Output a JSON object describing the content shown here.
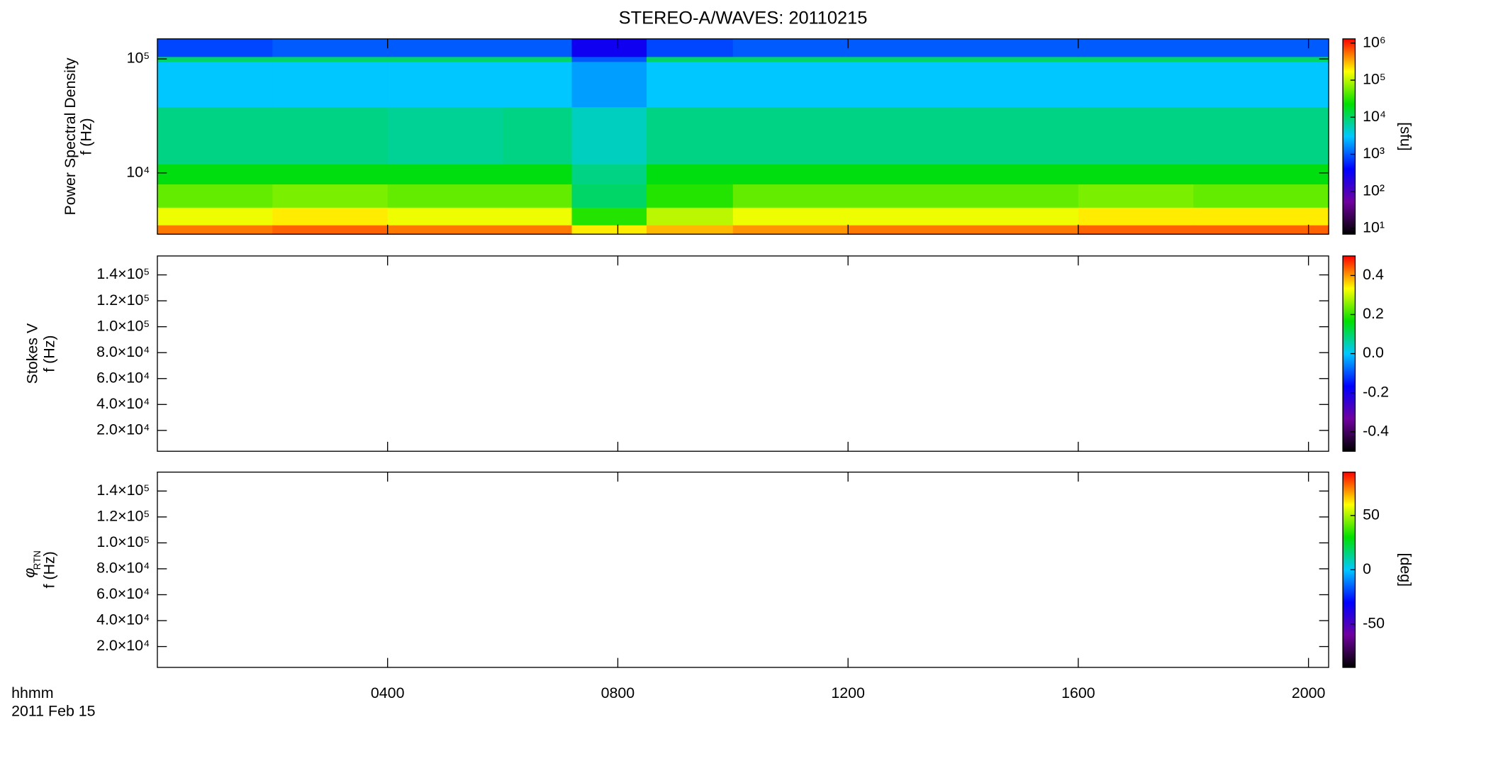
{
  "chart_data": [
    {
      "type": "spectrogram",
      "title": "STEREO-A/WAVES: 20110215",
      "ylabel": [
        "Power Spectral Density",
        "f (Hz)"
      ],
      "log": true,
      "ylim": [
        2900,
        150000
      ],
      "yticks": [
        {
          "value": 10000,
          "label": "10⁴"
        },
        {
          "value": 100000,
          "label": "10⁵"
        }
      ],
      "xlim": [
        0,
        20.35
      ],
      "xticks": [
        4,
        8,
        12,
        16,
        20
      ],
      "times": [
        0,
        2,
        4,
        6,
        7.2,
        8.5,
        10,
        12,
        14,
        16,
        18,
        20.35
      ],
      "freqs": [
        2900,
        3500,
        5000,
        8000,
        12000,
        38000,
        95000,
        105000,
        150000
      ],
      "values": [
        [
          500000,
          150000,
          50000,
          20000,
          8000,
          3000,
          10000,
          800
        ],
        [
          600000,
          200000,
          60000,
          20000,
          8000,
          3000,
          10000,
          1000
        ],
        [
          500000,
          150000,
          50000,
          20000,
          7000,
          3000,
          10000,
          1000
        ],
        [
          500000,
          150000,
          50000,
          20000,
          8000,
          3000,
          10000,
          1000
        ],
        [
          200000,
          30000,
          10000,
          8000,
          5000,
          2000,
          1000,
          300
        ],
        [
          300000,
          100000,
          30000,
          20000,
          8000,
          3000,
          10000,
          800
        ],
        [
          400000,
          150000,
          50000,
          20000,
          8000,
          3000,
          10000,
          1000
        ],
        [
          500000,
          150000,
          50000,
          20000,
          8000,
          3000,
          10000,
          1000
        ],
        [
          500000,
          150000,
          50000,
          20000,
          8000,
          3000,
          10000,
          1000
        ],
        [
          600000,
          200000,
          60000,
          20000,
          8000,
          3000,
          10000,
          1000
        ],
        [
          600000,
          200000,
          50000,
          20000,
          8000,
          3000,
          10000,
          1000
        ]
      ],
      "clog": true,
      "clim": [
        7,
        1300000
      ],
      "cticks": [
        {
          "value": 10,
          "label": "10¹"
        },
        {
          "value": 100,
          "label": "10²"
        },
        {
          "value": 1000,
          "label": "10³"
        },
        {
          "value": 10000,
          "label": "10⁴"
        },
        {
          "value": 100000,
          "label": "10⁵"
        },
        {
          "value": 1000000,
          "label": "10⁶"
        }
      ],
      "clabel": "[sfu]",
      "colorscale": [
        "#000000",
        "#7000a0",
        "#0000ff",
        "#00c8ff",
        "#00e000",
        "#ffff00",
        "#ff0000"
      ]
    },
    {
      "type": "spectrogram",
      "ylabel": [
        "Stokes V",
        "f (Hz)"
      ],
      "log": false,
      "ylim": [
        3900,
        154600
      ],
      "yticks": [
        {
          "value": 20000,
          "label": "2.0×10⁴"
        },
        {
          "value": 40000,
          "label": "4.0×10⁴"
        },
        {
          "value": 60000,
          "label": "6.0×10⁴"
        },
        {
          "value": 80000,
          "label": "8.0×10⁴"
        },
        {
          "value": 100000,
          "label": "1.0×10⁵"
        },
        {
          "value": 120000,
          "label": "1.2×10⁵"
        },
        {
          "value": 140000,
          "label": "1.4×10⁵"
        }
      ],
      "xlim": [
        0,
        20.35
      ],
      "xticks": [
        4,
        8,
        12,
        16,
        20
      ],
      "clog": false,
      "clim": [
        -0.5,
        0.5
      ],
      "cticks": [
        -0.4,
        -0.2,
        {
          "value": 0,
          "label": "0.0"
        },
        0.2,
        0.4
      ],
      "colorscale": [
        "#000000",
        "#7000a0",
        "#0000ff",
        "#00c8ff",
        "#00e000",
        "#ffff00",
        "#ff0000"
      ]
    },
    {
      "type": "spectrogram",
      "ylabel": [
        "f (Hz)"
      ],
      "ylabel_symbol": "φ",
      "ylabel_subscript": "RTN",
      "log": false,
      "ylim": [
        3900,
        154600
      ],
      "yticks": [
        {
          "value": 20000,
          "label": "2.0×10⁴"
        },
        {
          "value": 40000,
          "label": "4.0×10⁴"
        },
        {
          "value": 60000,
          "label": "6.0×10⁴"
        },
        {
          "value": 80000,
          "label": "8.0×10⁴"
        },
        {
          "value": 100000,
          "label": "1.0×10⁵"
        },
        {
          "value": 120000,
          "label": "1.2×10⁵"
        },
        {
          "value": 140000,
          "label": "1.4×10⁵"
        }
      ],
      "xlim": [
        0,
        20.35
      ],
      "xticks": [
        {
          "value": 4,
          "label": "0400"
        },
        {
          "value": 8,
          "label": "0800"
        },
        {
          "value": 12,
          "label": "1200"
        },
        {
          "value": 16,
          "label": "1600"
        },
        {
          "value": 20,
          "label": "2000"
        }
      ],
      "xlabel": [
        "hhmm",
        "2011 Feb 15"
      ],
      "clog": false,
      "clim": [
        -90,
        90
      ],
      "cticks": [
        -50,
        0,
        50
      ],
      "clabel": "[deg]",
      "colorscale": [
        "#000000",
        "#7000a0",
        "#0000ff",
        "#00c8ff",
        "#00e000",
        "#ffff00",
        "#ff0000"
      ]
    }
  ]
}
